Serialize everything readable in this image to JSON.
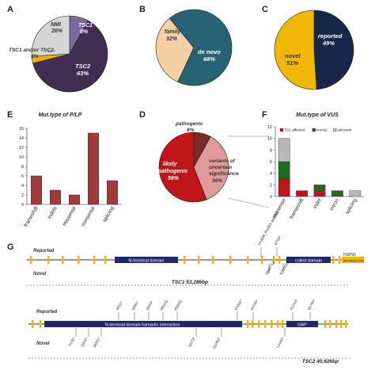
{
  "panels": {
    "A": {
      "letter": "A",
      "slices": [
        {
          "label": "TSC1",
          "value": 8,
          "color": "#7b6aa0"
        },
        {
          "label": "TSC2",
          "value": 63,
          "color": "#3f2d52"
        },
        {
          "label": "TSC1 and/or TSC2",
          "value": 3,
          "color": "#e8b200"
        },
        {
          "label": "NMI",
          "value": 26,
          "color": "#d6d6d6"
        }
      ],
      "labels": {
        "tsc1": "TSC1",
        "tsc1_pct": "8%",
        "tsc2": "TSC2",
        "tsc2_pct": "63%",
        "nmi": "NMI",
        "nmi_pct": "26%",
        "both": "TSC1 and/or TSC2",
        "both_pct": "3%"
      }
    },
    "B": {
      "letter": "B",
      "slices": [
        {
          "label": "family",
          "value": 32,
          "color": "#f7cfa4"
        },
        {
          "label": "de novo",
          "value": 68,
          "color": "#266374"
        }
      ],
      "labels": {
        "family": "family",
        "family_pct": "32%",
        "denovo": "de novo",
        "denovo_pct": "68%"
      }
    },
    "C": {
      "letter": "C",
      "slices": [
        {
          "label": "reported",
          "value": 49,
          "color": "#16274a"
        },
        {
          "label": "novel",
          "value": 51,
          "color": "#f2b705"
        }
      ],
      "labels": {
        "reported": "reported",
        "reported_pct": "49%",
        "novel": "novel",
        "novel_pct": "51%"
      }
    },
    "D": {
      "letter": "D",
      "slices": [
        {
          "label": "pathogenic",
          "value": 8,
          "color": "#7a2a2a"
        },
        {
          "label": "variants of uncertain significance",
          "value": 36,
          "color": "#e09a9a"
        },
        {
          "label": "likely pathogenic",
          "value": 56,
          "color": "#c0161a"
        }
      ],
      "labels": {
        "path": "pathogenic",
        "path_pct": "8%",
        "vus1": "variants of",
        "vus2": "uncertain",
        "vus3": "significance",
        "vus_pct": "36%",
        "lp1": "likely",
        "lp2": "pathogenic",
        "lp_pct": "56%"
      }
    },
    "E": {
      "letter": "E"
    },
    "F": {
      "letter": "F"
    },
    "G": {
      "letter": "G"
    }
  },
  "chart_data": [
    {
      "type": "bar",
      "title": "Mut.type of P/LP",
      "categories": [
        "frameshift",
        "indels",
        "missense",
        "nonsense",
        "splicing"
      ],
      "values": [
        6,
        3,
        2,
        15,
        5
      ],
      "ylim": [
        0,
        16
      ],
      "yticks": [
        "0",
        "2",
        "4",
        "6",
        "8",
        "10",
        "12",
        "14",
        "16"
      ],
      "color": "#a33a3a"
    },
    {
      "type": "bar",
      "title": "Mut.type of VUS",
      "categories": [
        "missense",
        "frameshift",
        "indel",
        "intron",
        "splicing"
      ],
      "series": [
        {
          "name": "TSC affected",
          "values": [
            3,
            1,
            1,
            0,
            0
          ],
          "color": "#c0161a"
        },
        {
          "name": "normal",
          "values": [
            3,
            0,
            1,
            1,
            0
          ],
          "color": "#1e6b1e"
        },
        {
          "name": "unknown",
          "values": [
            4,
            0,
            0,
            0,
            1
          ],
          "color": "#b8b8b8"
        }
      ],
      "ylim": [
        0,
        12
      ],
      "yticks": [
        "0",
        "2",
        "4",
        "6",
        "8",
        "10",
        "12"
      ]
    }
  ],
  "gene_tsc1": {
    "reported_label": "Reported",
    "novel_label": "Novel",
    "domain1": "N-terminal domain",
    "domain2": "coiled domain",
    "domain3": "HSP90",
    "domain3b": "INTERACTION",
    "caption": "TSC1  53,286bp",
    "reported_muts": [
      "Leu826_Pro583 deletion",
      "Q703*"
    ],
    "novel_muts": [
      "I886F*12",
      "E764Gfs*9"
    ]
  },
  "gene_tsc2": {
    "reported_label": "Reported",
    "novel_label": "Novel",
    "domain1": "N-terminal domain hamartin interaction",
    "domain2": "GAP",
    "caption": "TSC2  40,626bp",
    "reported_muts": [
      "S311*",
      "Q561*",
      "Q643*",
      "R611Q",
      "R905Q",
      "E1052*",
      "S1235*",
      "R1743*",
      "Q1794*"
    ],
    "novel_muts": [
      "Y130*",
      "Q242*",
      "W201*",
      "I1073*",
      "Q1380*",
      "L1440*"
    ]
  }
}
